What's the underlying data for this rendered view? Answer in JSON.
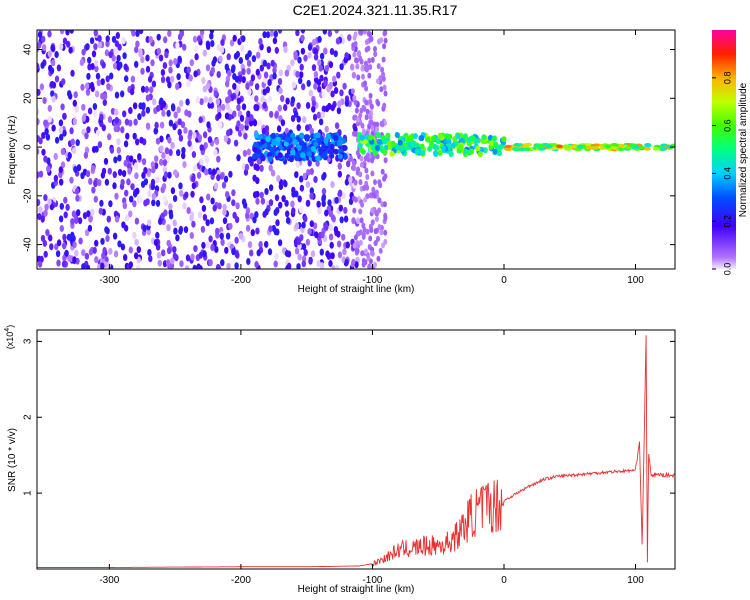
{
  "title": "C2E1.2024.321.11.35.R17",
  "chart_data": [
    {
      "type": "heatmap",
      "xlabel": "Height of straight line (km)",
      "ylabel": "Frequency (Hz)",
      "xlim": [
        -355,
        130
      ],
      "ylim": [
        -50,
        48
      ],
      "xticks": [
        -300,
        -200,
        -100,
        0,
        100
      ],
      "yticks": [
        -40,
        -20,
        0,
        20,
        40
      ],
      "colorbar": {
        "label": "Normalized spectral amplitude",
        "range": [
          0.0,
          1.0
        ],
        "ticks": [
          0.0,
          0.2,
          0.4,
          0.6,
          0.8
        ]
      },
      "description_regions": [
        {
          "x": [
            -355,
            -110
          ],
          "freq": [
            -50,
            48
          ],
          "amplitude": 0.15
        },
        {
          "x": [
            -190,
            -120
          ],
          "freq": [
            -5,
            5
          ],
          "amplitude": 0.35
        },
        {
          "x": [
            -110,
            0
          ],
          "freq": [
            -3,
            5
          ],
          "amplitude": 0.6
        },
        {
          "x": [
            0,
            130
          ],
          "freq": [
            -1,
            1
          ],
          "amplitude": 0.75
        }
      ]
    },
    {
      "type": "line",
      "xlabel": "Height of straight line (km)",
      "ylabel": "SNR (10 * v/v)",
      "y_multiplier": "(x10",
      "y_multiplier_exp": "4",
      "y_multiplier_close": ")",
      "xlim": [
        -355,
        130
      ],
      "ylim": [
        0,
        3.15
      ],
      "xticks": [
        -300,
        -200,
        -100,
        0,
        100
      ],
      "yticks": [
        1,
        2,
        3
      ],
      "series": [
        {
          "color": "#e83030",
          "x": [
            -355,
            -300,
            -200,
            -150,
            -110,
            -100,
            -90,
            -80,
            -60,
            -45,
            -35,
            -25,
            -15,
            -5,
            0,
            10,
            20,
            30,
            40,
            60,
            80,
            100,
            103,
            105,
            107,
            108,
            109,
            110,
            112,
            115,
            120,
            130
          ],
          "y": [
            0.01,
            0.01,
            0.02,
            0.02,
            0.03,
            0.06,
            0.15,
            0.25,
            0.3,
            0.32,
            0.45,
            0.7,
            0.82,
            0.85,
            0.9,
            1.0,
            1.1,
            1.18,
            1.22,
            1.25,
            1.28,
            1.3,
            1.7,
            0.3,
            2.1,
            3.1,
            0.1,
            1.5,
            1.22,
            1.25,
            1.24,
            1.23
          ]
        }
      ]
    }
  ],
  "colors": {
    "heatmap_low": "#8000ff",
    "line": "#e83030",
    "axis": "#000000"
  }
}
